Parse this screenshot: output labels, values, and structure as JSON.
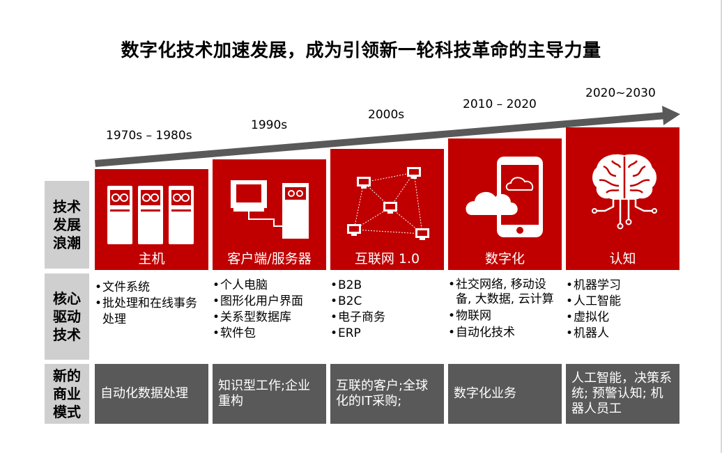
{
  "title": "数字化技术加速发展，成为引领新一轮科技革命的主导力量",
  "eras": [
    "1970s – 1980s",
    "1990s",
    "2000s",
    "2010 – 2020",
    "2020~2030"
  ],
  "row_labels": {
    "wave": "技术\n发展\n浪潮",
    "core": "核心\n驱动\n技术",
    "business": "新的\n商业\n模式"
  },
  "stages": [
    {
      "name": "主机",
      "icon": "mainframe-icon",
      "core_tech": [
        "文件系统",
        "批处理和在线事务处理"
      ],
      "business_model": "自动化数据处理"
    },
    {
      "name": "客户端/服务器",
      "icon": "client-server-icon",
      "core_tech": [
        "个人电脑",
        "图形化用户界面",
        "关系型数据库",
        "软件包"
      ],
      "business_model": "知识型工作;企业重构"
    },
    {
      "name": "互联网 1.0",
      "icon": "network-icon",
      "core_tech": [
        "B2B",
        "B2C",
        "电子商务",
        "ERP"
      ],
      "business_model": "互联的客户;全球化的IT采购;"
    },
    {
      "name": "数字化",
      "icon": "phone-cloud-icon",
      "core_tech": [
        "社交网络, 移动设备, 大数据, 云计算",
        "物联网",
        "自动化技术"
      ],
      "business_model": "数字化业务"
    },
    {
      "name": "认知",
      "icon": "brain-icon",
      "core_tech": [
        "机器学习",
        "人工智能",
        "虚拟化",
        "机器人"
      ],
      "business_model": "人工智能，决策系统; 预警认知; 机器人员工"
    }
  ],
  "colors": {
    "accent": "#c00000",
    "arrow": "#595959",
    "label_bg": "#cfcfcf",
    "business_bg": "#595959"
  }
}
